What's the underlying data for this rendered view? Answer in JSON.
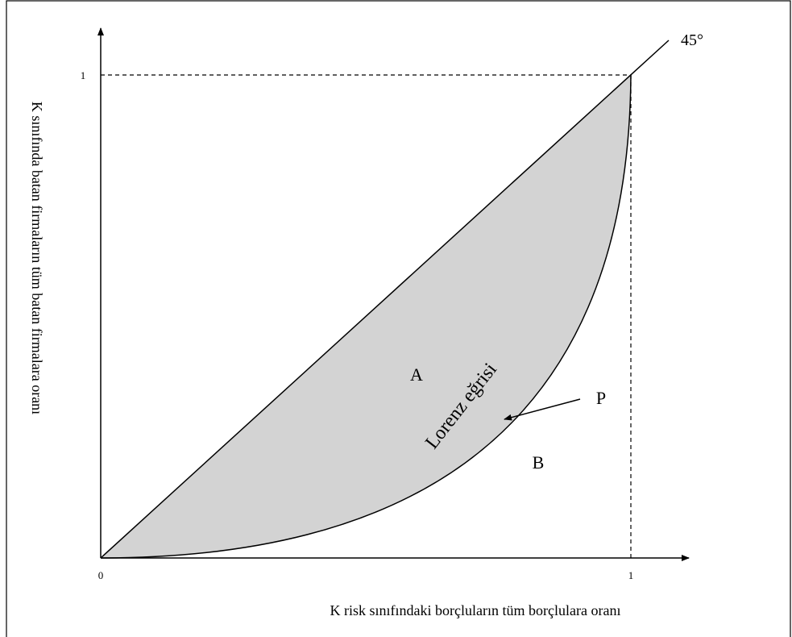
{
  "axes": {
    "x_label": "K risk sınıfındaki borçluların tüm borçlulara oranı",
    "y_label": "K sınıfında batan firmaların tüm batan firmalara oranı",
    "origin_label": "0",
    "x_tick": "1",
    "y_tick": "1"
  },
  "labels": {
    "angle": "45°",
    "area_a": "A",
    "area_b": "B",
    "point": "P",
    "curve": "Lorenz eğrisi"
  }
}
